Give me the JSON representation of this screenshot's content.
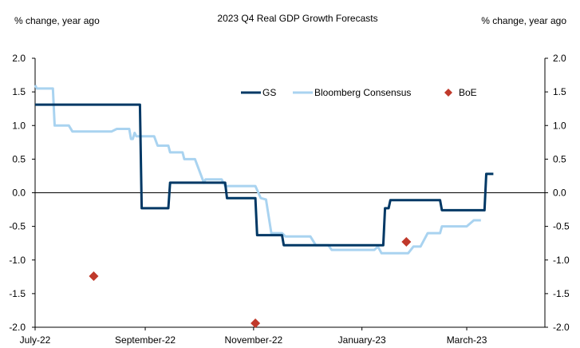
{
  "chart_data": {
    "type": "line",
    "title": "2023 Q4 Real GDP Growth Forecasts",
    "ylabel_left": "% change, year ago",
    "ylabel_right": "% change, year ago",
    "xlabel": "",
    "ylim": [
      -2.0,
      2.0
    ],
    "yticks": [
      "2.0",
      "1.5",
      "1.0",
      "0.5",
      "0.0",
      "-0.5",
      "-1.0",
      "-1.5",
      "-2.0"
    ],
    "ytick_values": [
      2.0,
      1.5,
      1.0,
      0.5,
      0.0,
      -0.5,
      -1.0,
      -1.5,
      -2.0
    ],
    "x_domain_days": [
      0,
      254
    ],
    "xticks": [
      {
        "label": "July-22",
        "day": 0
      },
      {
        "label": "September-22",
        "day": 62
      },
      {
        "label": "November-22",
        "day": 123
      },
      {
        "label": "January-23",
        "day": 184
      },
      {
        "label": "March-23",
        "day": 243
      }
    ],
    "legend": {
      "placement": "top-right",
      "entries": [
        {
          "name": "GS",
          "style": "line",
          "color": "#003865"
        },
        {
          "name": "Bloomberg Consensus",
          "style": "line",
          "color": "#a9d3f0"
        },
        {
          "name": "BoE",
          "style": "diamond",
          "color": "#c0392b"
        }
      ]
    },
    "series": [
      {
        "name": "GS",
        "color": "#003865",
        "points": [
          [
            0,
            1.31
          ],
          [
            59,
            1.31
          ],
          [
            60,
            -0.23
          ],
          [
            75,
            -0.23
          ],
          [
            76,
            0.15
          ],
          [
            107,
            0.15
          ],
          [
            108,
            -0.08
          ],
          [
            124,
            -0.08
          ],
          [
            125,
            -0.63
          ],
          [
            139,
            -0.63
          ],
          [
            140,
            -0.78
          ],
          [
            196,
            -0.78
          ],
          [
            197,
            -0.23
          ],
          [
            199,
            -0.23
          ],
          [
            200,
            -0.11
          ],
          [
            228,
            -0.11
          ],
          [
            229,
            -0.26
          ],
          [
            253,
            -0.26
          ],
          [
            254,
            0.28
          ],
          [
            258,
            0.28
          ]
        ]
      },
      {
        "name": "Bloomberg Consensus",
        "color": "#a9d3f0",
        "points": [
          [
            0,
            1.6
          ],
          [
            1,
            1.55
          ],
          [
            10,
            1.55
          ],
          [
            11,
            1.0
          ],
          [
            19,
            1.0
          ],
          [
            21,
            0.91
          ],
          [
            43,
            0.91
          ],
          [
            46,
            0.95
          ],
          [
            53,
            0.95
          ],
          [
            54,
            0.8
          ],
          [
            55,
            0.8
          ],
          [
            56,
            0.89
          ],
          [
            57,
            0.84
          ],
          [
            67,
            0.84
          ],
          [
            69,
            0.7
          ],
          [
            75,
            0.7
          ],
          [
            76,
            0.6
          ],
          [
            83,
            0.6
          ],
          [
            84,
            0.5
          ],
          [
            90,
            0.5
          ],
          [
            95,
            0.15
          ],
          [
            96,
            0.2
          ],
          [
            105,
            0.2
          ],
          [
            107,
            0.1
          ],
          [
            124,
            0.1
          ],
          [
            127,
            -0.08
          ],
          [
            130,
            -0.1
          ],
          [
            133,
            -0.6
          ],
          [
            139,
            -0.6
          ],
          [
            141,
            -0.65
          ],
          [
            155,
            -0.65
          ],
          [
            158,
            -0.78
          ],
          [
            165,
            -0.78
          ],
          [
            167,
            -0.85
          ],
          [
            191,
            -0.85
          ],
          [
            193,
            -0.8
          ],
          [
            195,
            -0.9
          ],
          [
            210,
            -0.9
          ],
          [
            213,
            -0.8
          ],
          [
            217,
            -0.8
          ],
          [
            221,
            -0.6
          ],
          [
            228,
            -0.6
          ],
          [
            229,
            -0.5
          ],
          [
            243,
            -0.5
          ],
          [
            247,
            -0.41
          ],
          [
            251,
            -0.41
          ]
        ]
      }
    ],
    "scatter": {
      "name": "BoE",
      "color": "#c0392b",
      "points": [
        [
          33,
          -1.24
        ],
        [
          124,
          -1.94
        ],
        [
          209,
          -0.73
        ]
      ]
    }
  }
}
